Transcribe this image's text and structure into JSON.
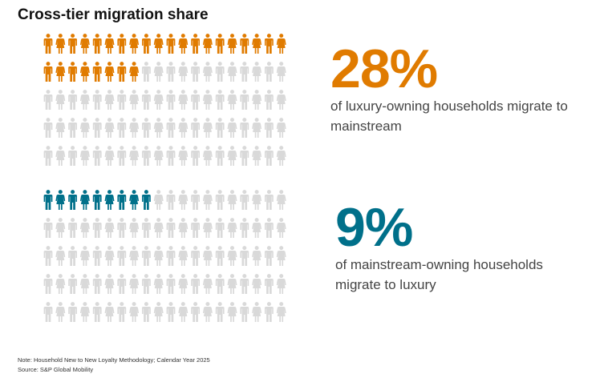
{
  "title": "Cross-tier migration share",
  "colors": {
    "luxury": "#E07B00",
    "mainstream": "#00708A",
    "inactive": "#D9D9D9"
  },
  "chart_data": [
    {
      "type": "pictogram",
      "total": 100,
      "columns": 20,
      "rows": 5,
      "highlighted": 28,
      "color_key": "luxury",
      "value_label": "28%",
      "description": "of luxury-owning households migrate to mainstream"
    },
    {
      "type": "pictogram",
      "total": 100,
      "columns": 20,
      "rows": 5,
      "highlighted": 9,
      "color_key": "mainstream",
      "value_label": "9%",
      "description": "of mainstream-owning households migrate to luxury"
    }
  ],
  "footnotes": {
    "note": "Note: Household New to New Loyalty Methodology; Calendar Year 2025",
    "source": "Source: S&P Global Mobility"
  }
}
